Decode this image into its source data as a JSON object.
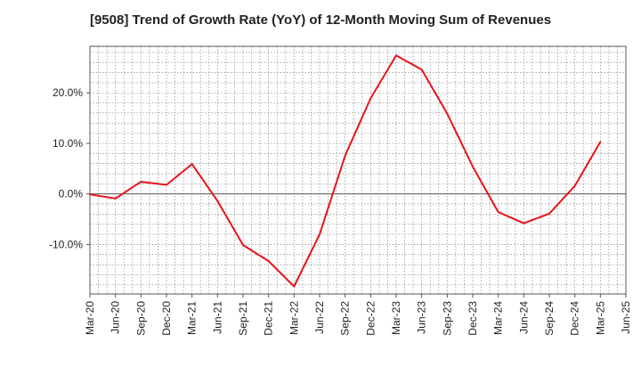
{
  "chart_data": {
    "type": "line",
    "title": "[9508]  Trend of Growth Rate (YoY) of 12-Month Moving Sum of Revenues",
    "xlabel": "",
    "ylabel": "",
    "x": [
      "Mar-20",
      "Jun-20",
      "Sep-20",
      "Dec-20",
      "Mar-21",
      "Jun-21",
      "Sep-21",
      "Dec-21",
      "Mar-22",
      "Jun-22",
      "Sep-22",
      "Dec-22",
      "Mar-23",
      "Jun-23",
      "Sep-23",
      "Dec-23",
      "Mar-24",
      "Jun-24",
      "Sep-24",
      "Dec-24",
      "Mar-25",
      "Jun-25"
    ],
    "series": [
      {
        "color": "#e8141b",
        "values": [
          -0.1,
          -0.9,
          2.4,
          1.8,
          5.9,
          -1.4,
          -10.1,
          -13.3,
          -18.3,
          -8.0,
          7.6,
          18.9,
          27.4,
          24.6,
          15.9,
          5.4,
          -3.6,
          -5.8,
          -3.9,
          1.6,
          10.3,
          null
        ]
      }
    ],
    "ylim": [
      -19.8,
      29.2
    ],
    "yticks": [
      20.0,
      10.0,
      0.0,
      -10.0
    ],
    "ytick_labels": [
      "20.0%",
      "10.0%",
      "0.0%",
      "-10.0%"
    ],
    "grid": true,
    "legend": "none"
  }
}
